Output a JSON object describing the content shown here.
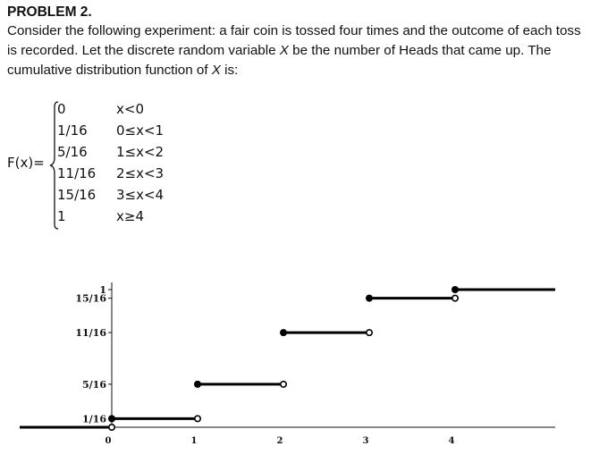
{
  "problem": {
    "title": "PROBLEM 2.",
    "text_1": "Consider the following experiment: a fair coin is tossed four times and the outcome of each toss is recorded. Let the discrete random variable ",
    "var_x": "X",
    "text_2": " be the number of Heads that came up. The cumulative distribution function of ",
    "var_x2": "X",
    "text_3": " is:"
  },
  "cdf": {
    "lhs": "F(x)=",
    "rows": [
      {
        "value": "0",
        "condition": "x<0"
      },
      {
        "value": "1/16",
        "condition": "0≤x<1"
      },
      {
        "value": "5/16",
        "condition": "1≤x<2"
      },
      {
        "value": "11/16",
        "condition": "2≤x<3"
      },
      {
        "value": "15/16",
        "condition": "3≤x<4"
      },
      {
        "value": "1",
        "condition": "x≥4"
      }
    ]
  },
  "chart_data": {
    "type": "step",
    "title": "",
    "xlabel": "",
    "ylabel": "",
    "xlim": [
      -1,
      5
    ],
    "ylim": [
      0,
      1
    ],
    "x_ticks": [
      {
        "value": 0,
        "label": "0"
      },
      {
        "value": 1,
        "label": "1"
      },
      {
        "value": 2,
        "label": "2"
      },
      {
        "value": 3,
        "label": "3"
      },
      {
        "value": 4,
        "label": "4"
      }
    ],
    "y_ticks": [
      {
        "value": 0.0625,
        "label": "1/16"
      },
      {
        "value": 0.3125,
        "label": "5/16"
      },
      {
        "value": 0.6875,
        "label": "11/16"
      },
      {
        "value": 0.9375,
        "label": "15/16"
      },
      {
        "value": 1,
        "label": "1"
      }
    ],
    "segments": [
      {
        "x_start": -1,
        "x_end": 0,
        "y": 0,
        "closed_start": false,
        "open_end": true
      },
      {
        "x_start": 0,
        "x_end": 1,
        "y": 0.0625,
        "closed_start": true,
        "open_end": true
      },
      {
        "x_start": 1,
        "x_end": 2,
        "y": 0.3125,
        "closed_start": true,
        "open_end": true
      },
      {
        "x_start": 2,
        "x_end": 3,
        "y": 0.6875,
        "closed_start": true,
        "open_end": true
      },
      {
        "x_start": 3,
        "x_end": 4,
        "y": 0.9375,
        "closed_start": true,
        "open_end": true
      },
      {
        "x_start": 4,
        "x_end": 5,
        "y": 1,
        "closed_start": true,
        "open_end": false
      }
    ],
    "grid": false,
    "legend": "none"
  }
}
